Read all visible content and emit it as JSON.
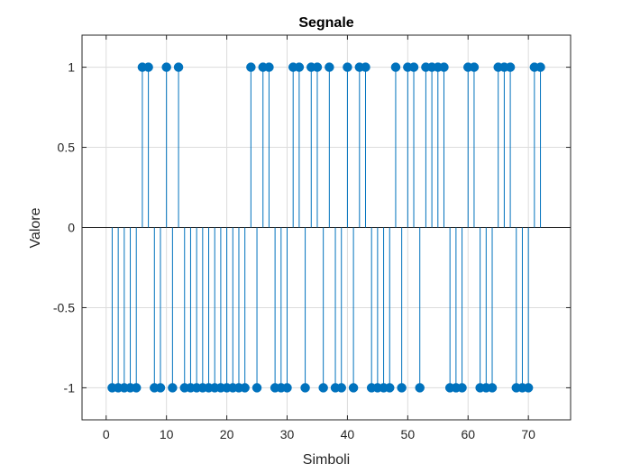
{
  "chart_data": {
    "type": "stem",
    "title": "Segnale",
    "xlabel": "Simboli",
    "ylabel": "Valore",
    "xlim": [
      -4,
      77
    ],
    "ylim": [
      -1.2,
      1.2
    ],
    "xticks": [
      0,
      10,
      20,
      30,
      40,
      50,
      60,
      70
    ],
    "yticks": [
      -1,
      -0.5,
      0,
      0.5,
      1
    ],
    "xtick_labels": [
      "0",
      "10",
      "20",
      "30",
      "40",
      "50",
      "60",
      "70"
    ],
    "ytick_labels": [
      "-1",
      "-0.5",
      "0",
      "0.5",
      "1"
    ],
    "grid": true,
    "baseline": 0,
    "color": "#0072BD",
    "x": [
      1,
      2,
      3,
      4,
      5,
      6,
      7,
      8,
      9,
      10,
      11,
      12,
      13,
      14,
      15,
      16,
      17,
      18,
      19,
      20,
      21,
      22,
      23,
      24,
      25,
      26,
      27,
      28,
      29,
      30,
      31,
      32,
      33,
      34,
      35,
      36,
      37,
      38,
      39,
      40,
      41,
      42,
      43,
      44,
      45,
      46,
      47,
      48,
      49,
      50,
      51,
      52,
      53,
      54,
      55,
      56,
      57,
      58,
      59,
      60,
      61,
      62,
      63,
      64,
      65,
      66,
      67,
      68,
      69,
      70,
      71,
      72
    ],
    "values": [
      -1,
      -1,
      -1,
      -1,
      -1,
      1,
      1,
      -1,
      -1,
      1,
      -1,
      1,
      -1,
      -1,
      -1,
      -1,
      -1,
      -1,
      -1,
      -1,
      -1,
      -1,
      -1,
      1,
      -1,
      1,
      1,
      -1,
      -1,
      -1,
      1,
      1,
      -1,
      1,
      1,
      -1,
      1,
      -1,
      -1,
      1,
      -1,
      1,
      1,
      -1,
      -1,
      -1,
      -1,
      1,
      -1,
      1,
      1,
      -1,
      1,
      1,
      1,
      1,
      -1,
      -1,
      -1,
      1,
      1,
      -1,
      -1,
      -1,
      1,
      1,
      1,
      -1,
      -1,
      -1,
      1,
      1
    ]
  }
}
